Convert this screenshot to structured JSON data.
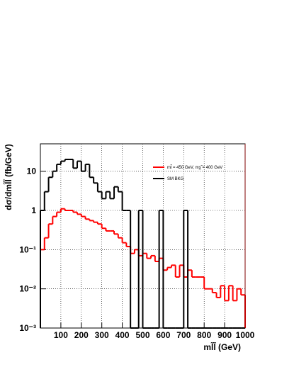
{
  "chart_data": {
    "type": "histogram",
    "x_label": "ml̃l̃ (GeV)",
    "y_label": "dσ/dml̃l̃ (fb/GeV)",
    "bins": [
      0,
      20,
      40,
      60,
      80,
      100,
      120,
      140,
      160,
      180,
      200,
      220,
      240,
      260,
      280,
      300,
      320,
      340,
      360,
      380,
      400,
      420,
      440,
      460,
      480,
      500,
      520,
      540,
      560,
      580,
      600,
      620,
      640,
      660,
      680,
      700,
      720,
      740,
      760,
      780,
      800,
      820,
      840,
      860,
      880,
      900,
      920,
      940,
      960,
      980,
      1000
    ],
    "series": [
      {
        "name": "ml̃ = 450 GeV, mχ̃ = 400 GeV",
        "color": "#ff0000",
        "values": [
          0.1,
          0.2,
          0.45,
          0.7,
          0.9,
          1.1,
          1.0,
          1.0,
          0.9,
          0.8,
          0.7,
          0.6,
          0.55,
          0.5,
          0.45,
          0.35,
          0.3,
          0.3,
          0.25,
          0.2,
          0.15,
          0.12,
          0.08,
          0.1,
          0.07,
          0.08,
          0.06,
          0.07,
          0.05,
          0.06,
          0.03,
          0.035,
          0.04,
          0.02,
          0.04,
          0.02,
          0.03,
          0.02,
          0.02,
          0.02,
          0.01,
          0.01,
          0.008,
          0.006,
          0.012,
          0.005,
          0.012,
          0.005,
          0.01,
          0.007
        ]
      },
      {
        "name": "SM BKG",
        "color": "#000000",
        "values": [
          1,
          3,
          7,
          10,
          15,
          18,
          20,
          20,
          12,
          18,
          10,
          15,
          7,
          5,
          3,
          2,
          3,
          2,
          4,
          3,
          1,
          1,
          0,
          0,
          1,
          0,
          0,
          0,
          0,
          1,
          0,
          0,
          0,
          0,
          0,
          1,
          0,
          0,
          0,
          0,
          0,
          0,
          0,
          0,
          0,
          0,
          0,
          0,
          0,
          0
        ]
      }
    ],
    "xlim": [
      0,
      1000
    ],
    "xticks": [
      100,
      200,
      300,
      400,
      500,
      600,
      700,
      800,
      900,
      1000
    ],
    "ylim": [
      0.001,
      50
    ],
    "yticks": [
      {
        "value": 0.001,
        "label": "10⁻³"
      },
      {
        "value": 0.01,
        "label": "10⁻²"
      },
      {
        "value": 0.1,
        "label": "10⁻¹"
      },
      1,
      10
    ],
    "log_y": true,
    "grid": true
  }
}
